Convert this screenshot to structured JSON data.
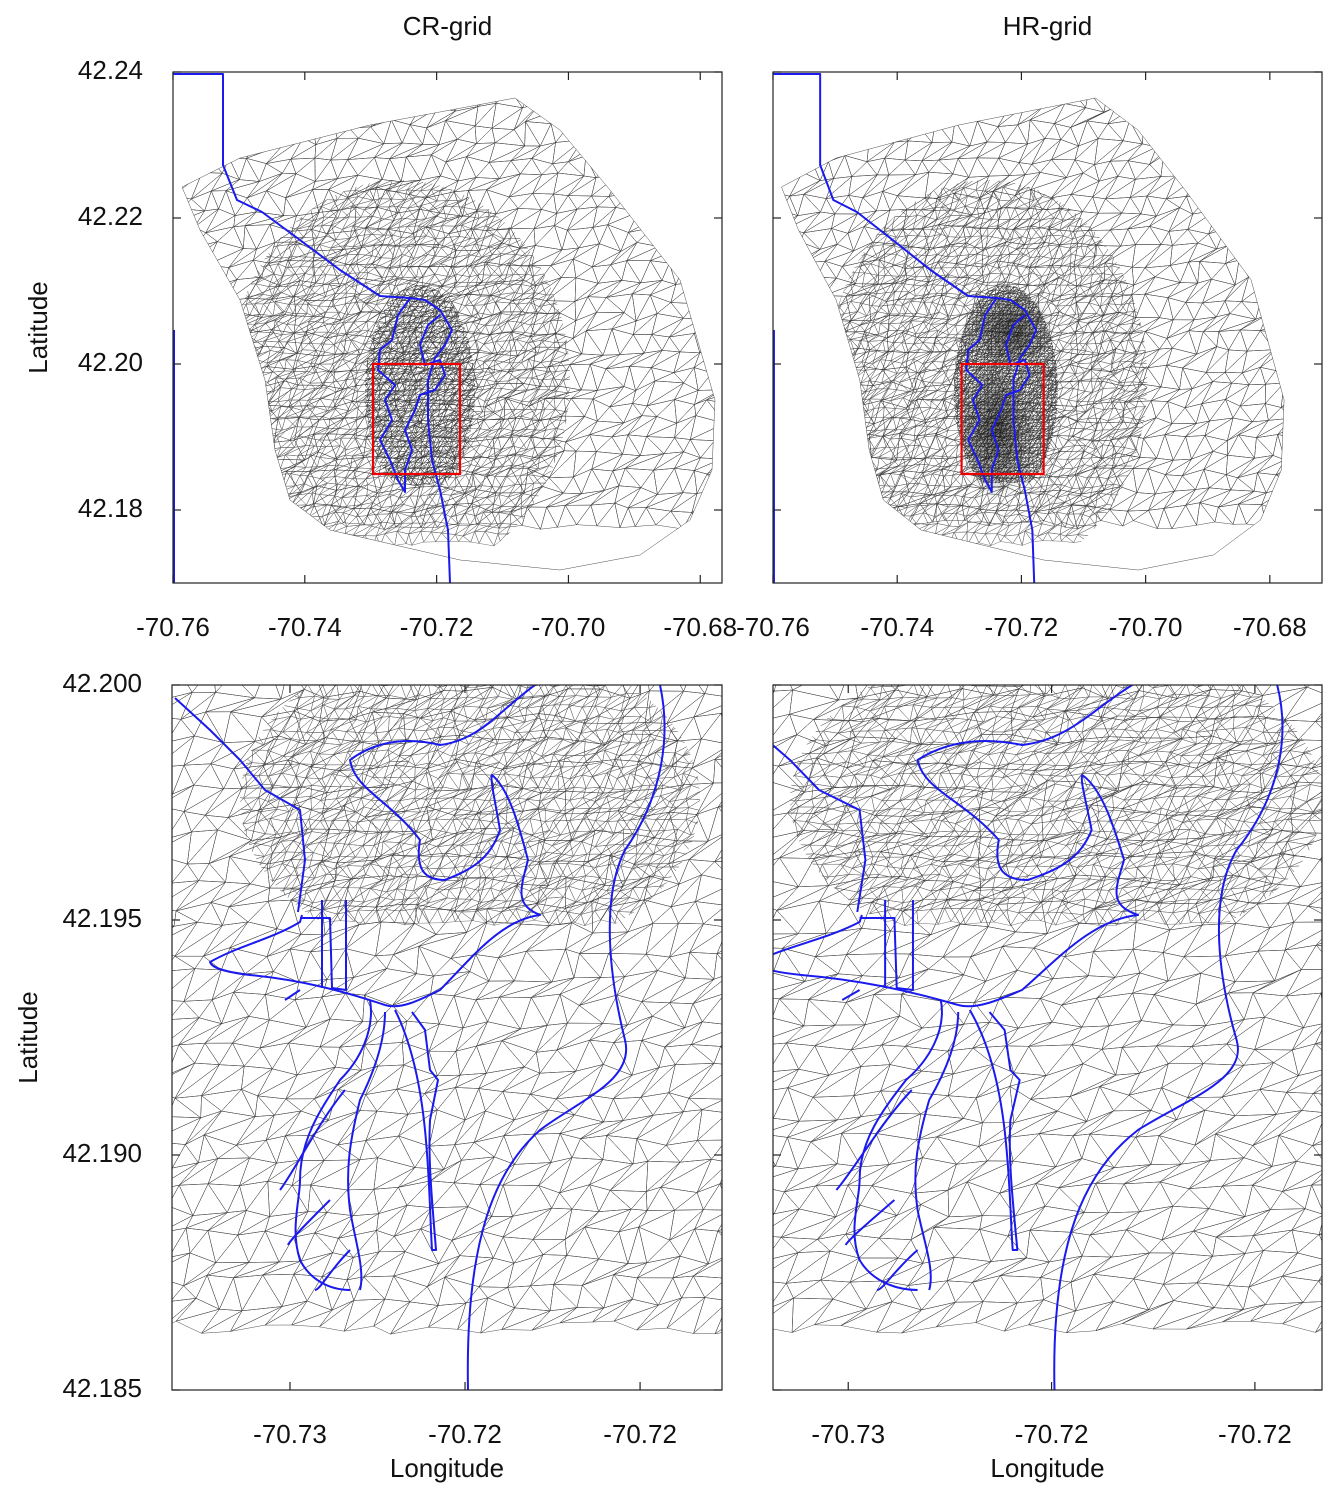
{
  "chart_data": [
    {
      "type": "mesh",
      "title": "CR-grid",
      "ylabel": "Latitude",
      "xlim": [
        -70.76,
        -70.6767
      ],
      "ylim": [
        42.17,
        42.24
      ],
      "xticks": [
        -70.76,
        -70.74,
        -70.72,
        {
          "value": -70.7,
          "label": "-70.70"
        },
        -70.68
      ],
      "yticks": [
        42.18,
        {
          "value": 42.2,
          "label": "42.20"
        },
        42.22,
        42.24
      ]
    },
    {
      "type": "mesh",
      "title": "HR-grid",
      "xlim": [
        -70.76,
        -70.6716
      ],
      "ylim": [
        42.17,
        42.24
      ],
      "xticks": [
        -70.76,
        -70.74,
        -70.72,
        {
          "value": -70.7,
          "label": "-70.70"
        },
        -70.68
      ],
      "yticks": [
        42.18,
        42.2,
        42.22,
        42.24
      ]
    },
    {
      "type": "mesh",
      "xlabel": "Longitude",
      "ylabel": "Latitude",
      "xlim": [
        -70.72837,
        -70.71266
      ],
      "ylim": [
        42.185,
        42.2
      ],
      "xticks": [
        {
          "value": -70.725,
          "label": "-70.73"
        },
        -70.72,
        {
          "value": -70.715,
          "label": "-70.72"
        }
      ],
      "yticks": [
        42.185,
        {
          "value": 42.19,
          "label": "42.190"
        },
        42.195,
        {
          "value": 42.2,
          "label": "42.200"
        }
      ]
    },
    {
      "type": "mesh",
      "xlabel": "Longitude",
      "xlim": [
        -70.72685,
        -70.71335
      ],
      "ylim": [
        42.185,
        42.2
      ],
      "xticks": [
        {
          "value": -70.725,
          "label": "-70.73"
        },
        -70.72,
        {
          "value": -70.715,
          "label": "-70.72"
        }
      ],
      "yticks": [
        42.185,
        42.19,
        42.195,
        42.2
      ]
    }
  ]
}
